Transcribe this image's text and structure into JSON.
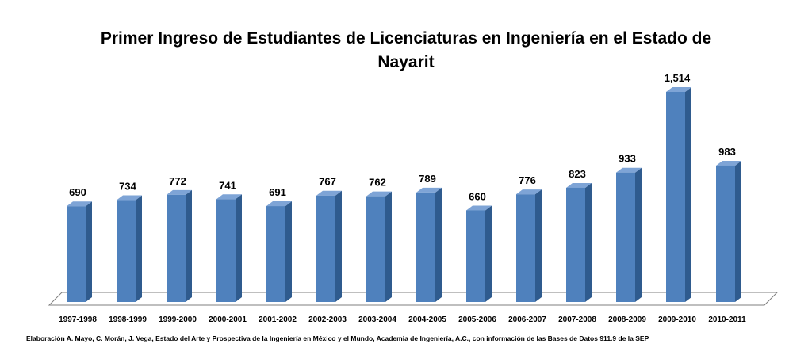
{
  "chart_data": {
    "type": "bar",
    "title": "Primer Ingreso de Estudiantes de Licenciaturas en Ingeniería en el Estado de Nayarit",
    "categories": [
      "1997-1998",
      "1998-1999",
      "1999-2000",
      "2000-2001",
      "2001-2002",
      "2002-2003",
      "2003-2004",
      "2004-2005",
      "2005-2006",
      "2006-2007",
      "2007-2008",
      "2008-2009",
      "2009-2010",
      "2010-2011"
    ],
    "values": [
      690,
      734,
      772,
      741,
      691,
      767,
      762,
      789,
      660,
      776,
      823,
      933,
      1514,
      983
    ],
    "value_labels": [
      "690",
      "734",
      "772",
      "741",
      "691",
      "767",
      "762",
      "789",
      "660",
      "776",
      "823",
      "933",
      "1,514",
      "983"
    ],
    "xlabel": "",
    "ylabel": "",
    "ylim": [
      0,
      1514
    ],
    "grid": false,
    "legend": "none",
    "colors": {
      "bar_front": "#4f81bd",
      "bar_side": "#2f5b8e",
      "bar_top": "#7ea4d6",
      "floor": "#ffffff",
      "floor_stroke": "#7f7f7f"
    }
  },
  "source_note": "Elaboración A. Mayo, C. Morán, J. Vega, Estado del Arte y Prospectiva de la Ingeniería en México y el Mundo, Academia de Ingeniería, A.C., con información de las Bases de Datos  911.9  de la SEP"
}
